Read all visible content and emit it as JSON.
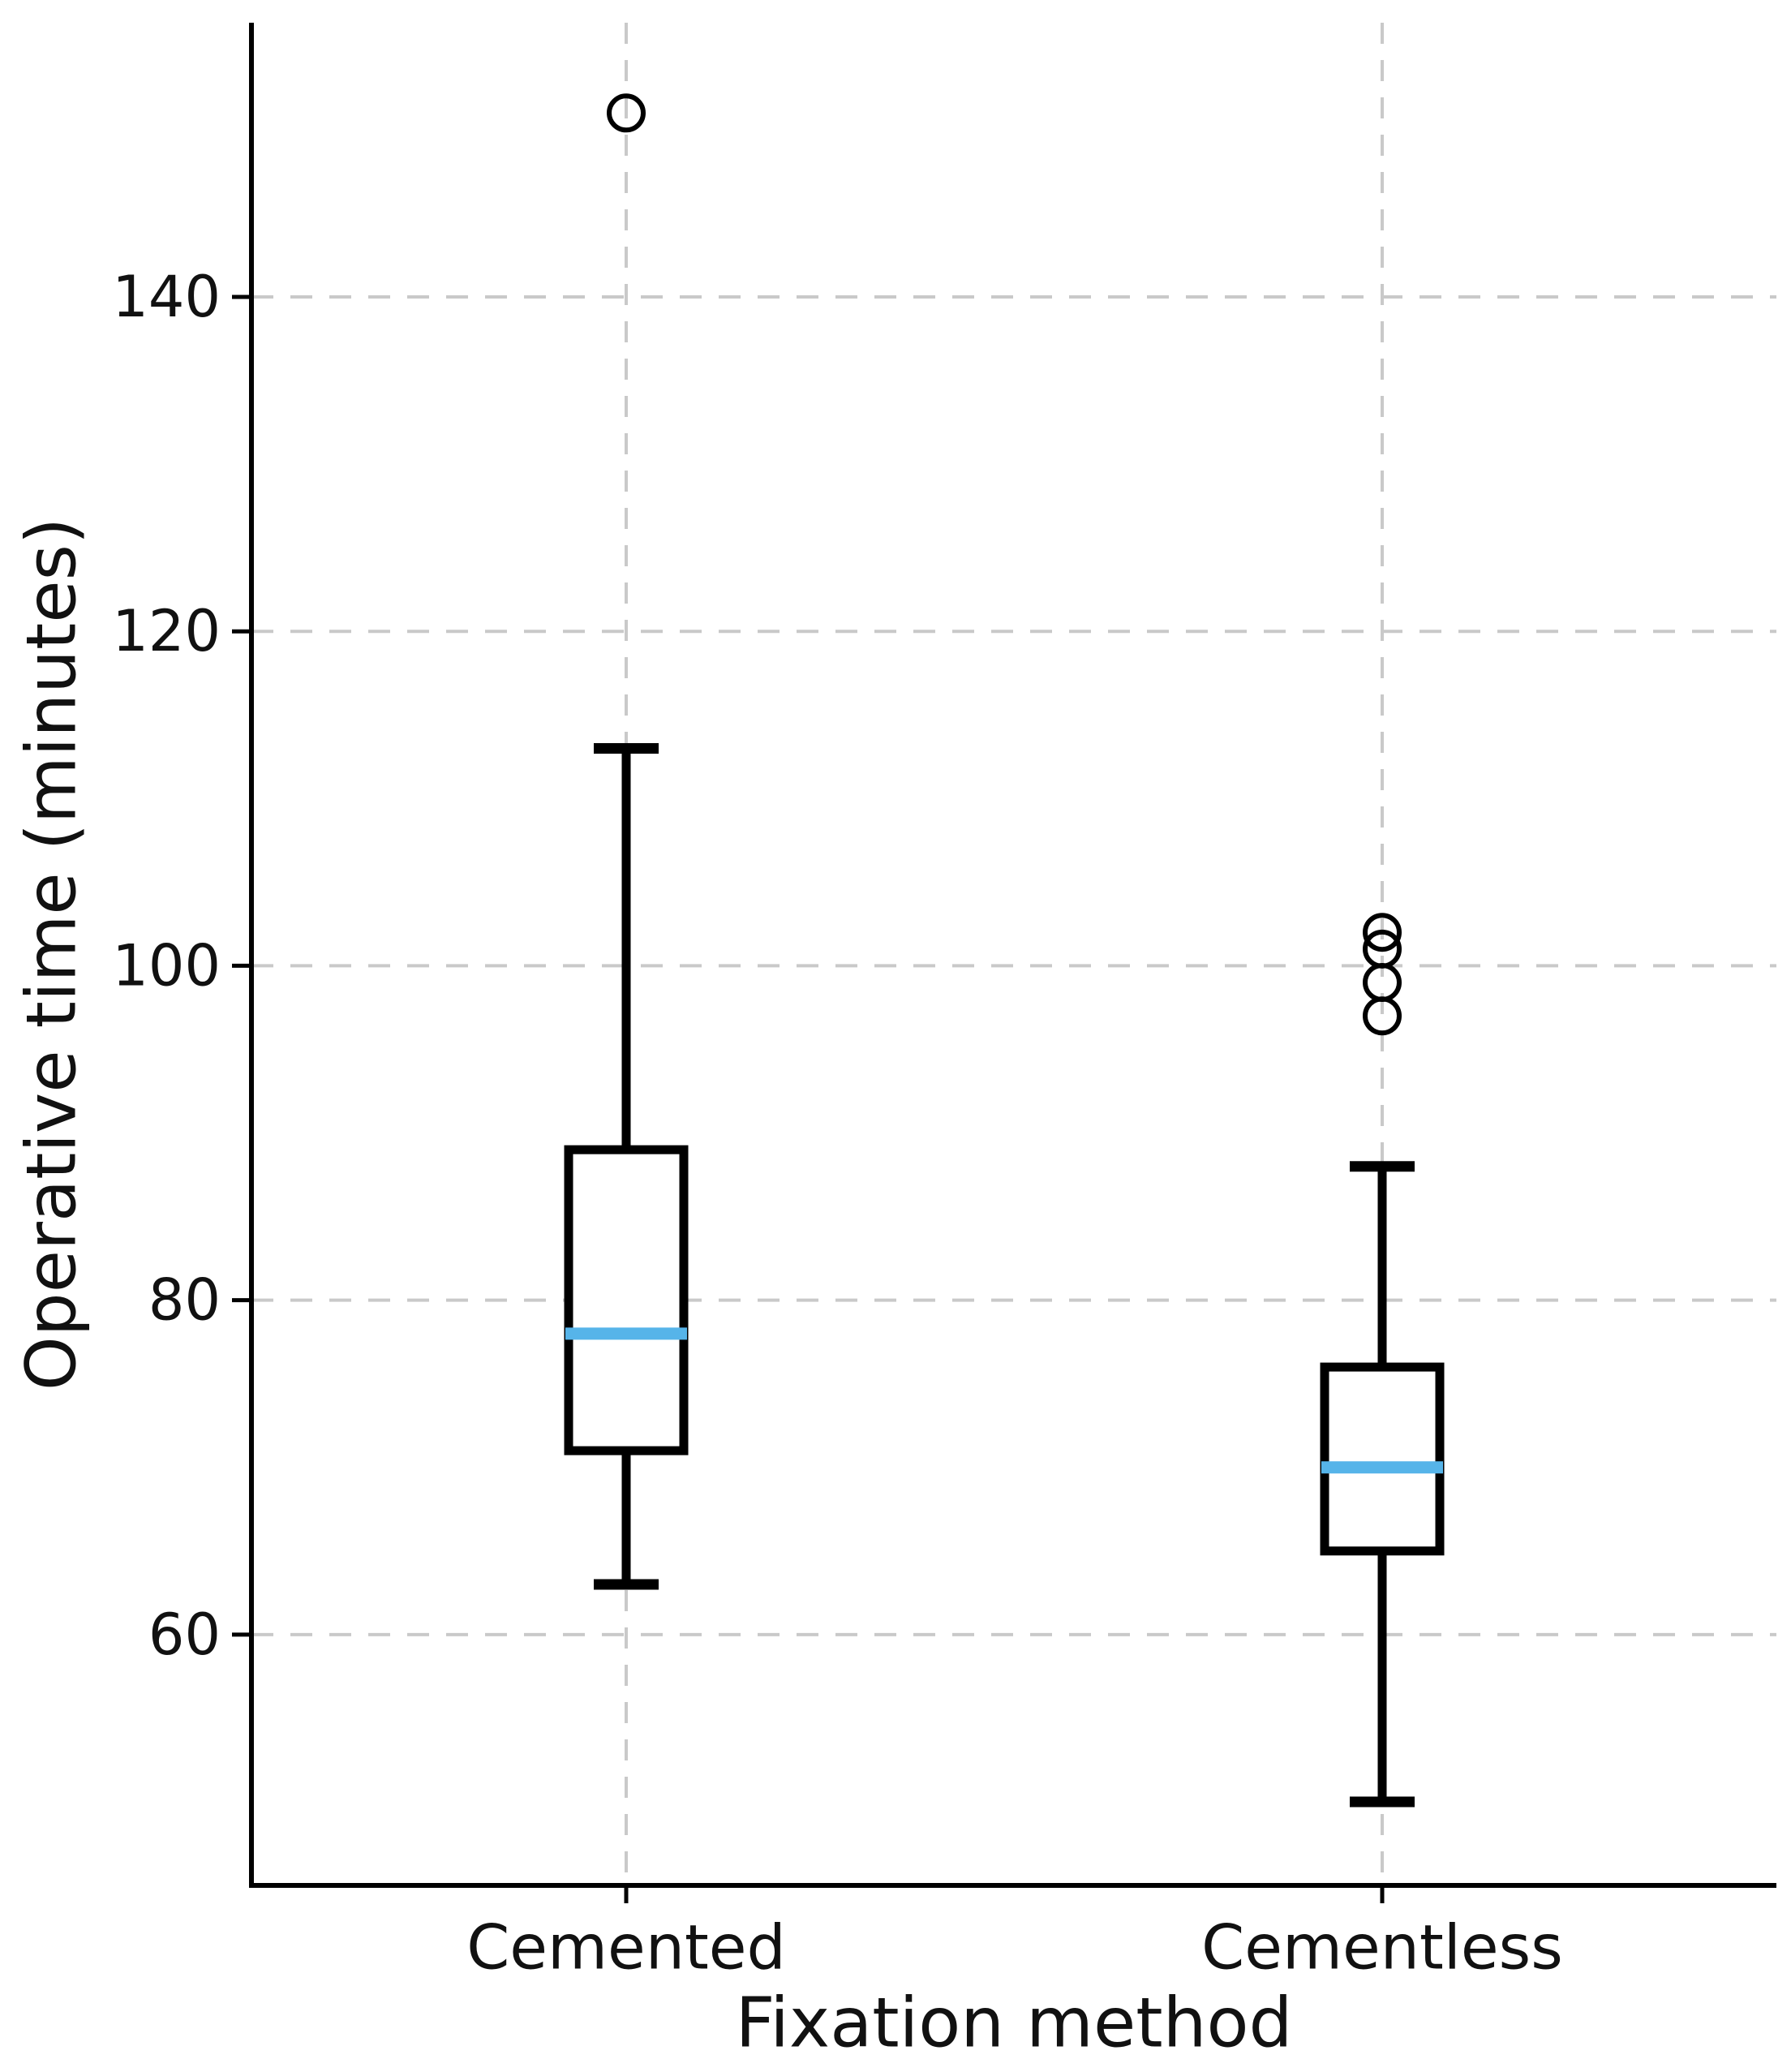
{
  "chart_data": {
    "type": "boxplot",
    "title": "",
    "xlabel": "Fixation method",
    "ylabel": "Operative time (minutes)",
    "categories": [
      "Cemented",
      "Cementless"
    ],
    "yticks": [
      60,
      80,
      100,
      120,
      140
    ],
    "ylim": [
      45,
      156.4
    ],
    "grid": {
      "horizontal_dashed": true,
      "vertical_category_dashed": true,
      "color": "#c9c9c9"
    },
    "legend": "none",
    "colors": {
      "box_outline": "#000000",
      "median_line": "#56b4e9",
      "spine": "#000000",
      "text": "#111111",
      "background": "#ffffff"
    },
    "series": [
      {
        "name": "Cemented",
        "whisker_low": 63,
        "q1": 71,
        "median": 78,
        "q3": 89,
        "whisker_high": 113,
        "outliers": [
          151
        ]
      },
      {
        "name": "Cementless",
        "whisker_low": 50,
        "q1": 65,
        "median": 70,
        "q3": 76,
        "whisker_high": 88,
        "outliers": [
          97,
          99,
          101,
          102
        ]
      }
    ]
  }
}
